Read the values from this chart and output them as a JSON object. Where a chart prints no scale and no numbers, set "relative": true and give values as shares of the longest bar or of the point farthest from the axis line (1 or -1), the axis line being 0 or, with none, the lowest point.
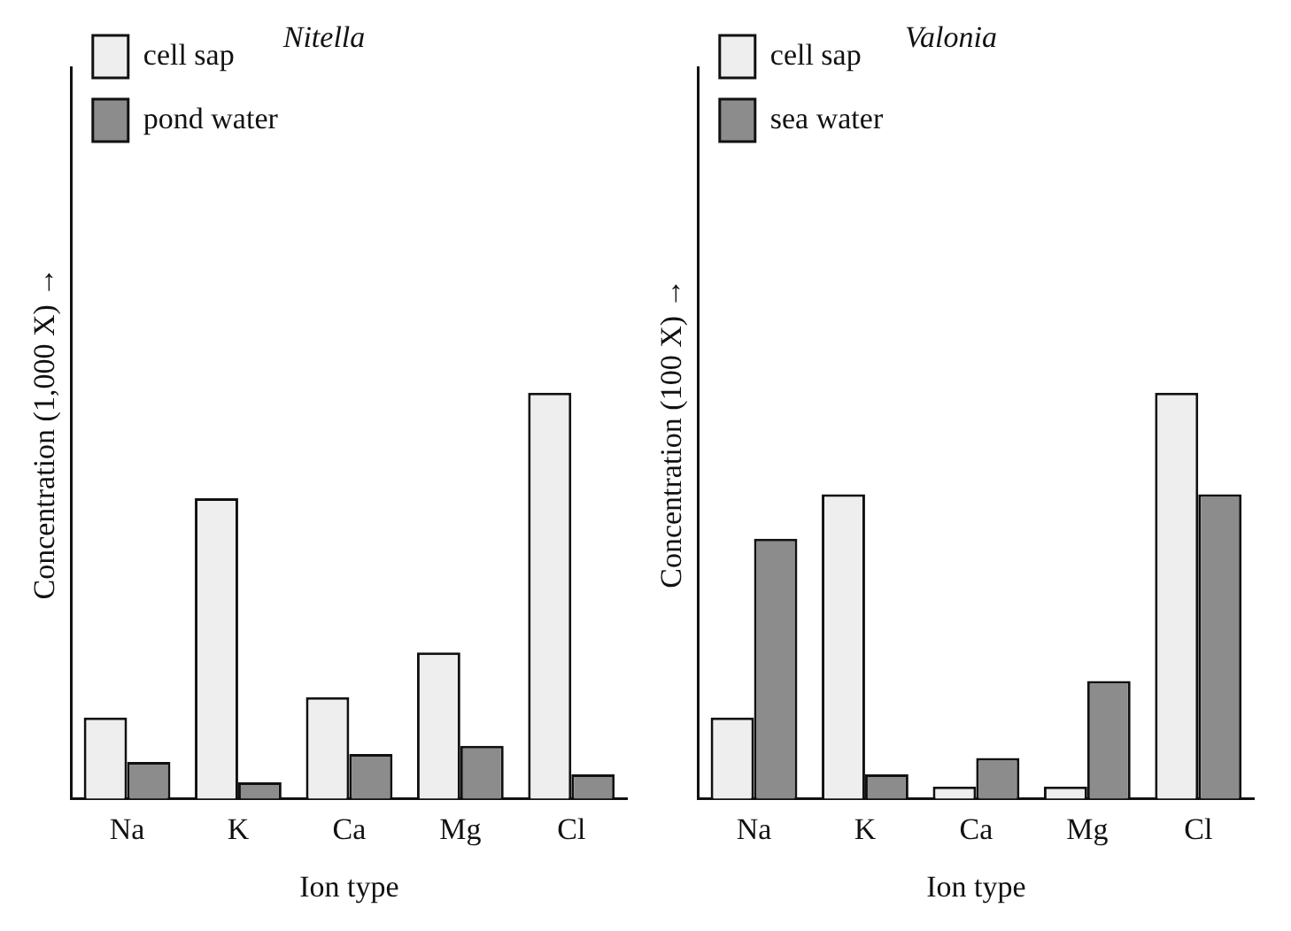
{
  "chart_data": [
    {
      "type": "bar",
      "title": "Nitella",
      "xlabel": "Ion type",
      "ylabel": "Concentration (1,000 X) →",
      "relative": true,
      "legend": "top left",
      "grid": false,
      "categories": [
        "Na",
        "K",
        "Ca",
        "Mg",
        "Cl"
      ],
      "series": [
        {
          "name": "cell sap",
          "color": "#eeeeee",
          "values": [
            0.2,
            0.74,
            0.25,
            0.36,
            1
          ]
        },
        {
          "name": "pond water",
          "color": "#8c8c8c",
          "values": [
            0.09,
            0.04,
            0.11,
            0.13,
            0.06
          ]
        }
      ]
    },
    {
      "type": "bar",
      "title": "Valonia",
      "xlabel": "Ion type",
      "ylabel": "Concentration (100 X) →",
      "relative": true,
      "legend": "top left",
      "grid": false,
      "categories": [
        "Na",
        "K",
        "Ca",
        "Mg",
        "Cl"
      ],
      "series": [
        {
          "name": "cell sap",
          "color": "#eeeeee",
          "values": [
            0.2,
            0.75,
            0.03,
            0.03,
            1
          ]
        },
        {
          "name": "sea water",
          "color": "#8c8c8c",
          "values": [
            0.64,
            0.06,
            0.1,
            0.29,
            0.75
          ]
        }
      ]
    }
  ]
}
